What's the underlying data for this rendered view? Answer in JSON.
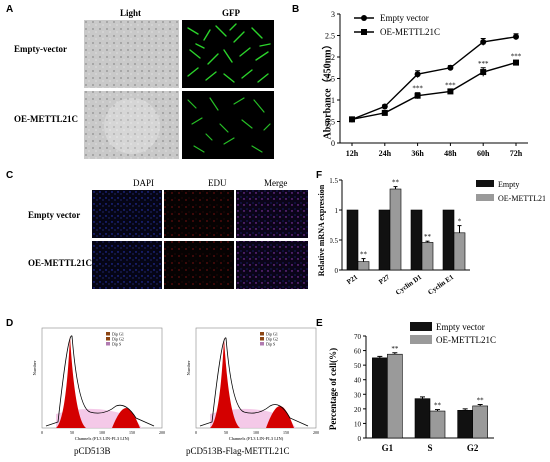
{
  "panels": {
    "A": {
      "letter": "A",
      "col_labels": [
        "Light",
        "GFP"
      ],
      "row_labels": [
        "Empty-vector",
        "OE-METTL21C"
      ]
    },
    "B": {
      "letter": "B",
      "ylabel": "Absorbance（450nm）",
      "legend": [
        "Empty vector",
        "OE-METTL21C"
      ],
      "sig": "***"
    },
    "C": {
      "letter": "C",
      "col_labels": [
        "DAPI",
        "EDU",
        "Merge"
      ],
      "row_labels": [
        "Empty vector",
        "OE-METTL21C"
      ]
    },
    "D": {
      "letter": "D",
      "captions": [
        "pCD513B",
        "pCD513B-Flag-METTL21C"
      ],
      "legend_items": [
        "Dip G1",
        "Dip G2",
        "Dip S"
      ],
      "xaxis_text": "Channels (FL3 LIN-FL3 LIN)",
      "yaxis_text": "Number",
      "tick_labels": [
        "0",
        "50",
        "100",
        "150",
        "200"
      ]
    },
    "E": {
      "letter": "E",
      "ylabel": "Percentage of cell(%)",
      "legend": [
        "Empty vector",
        "OE-METTL21C"
      ],
      "sig": "**"
    },
    "F": {
      "letter": "F",
      "ylabel": "Relative mRNA expression",
      "legend": [
        "Empty",
        "OE-METTL21C"
      ],
      "sig2": "**",
      "sig1": "*"
    }
  },
  "colors": {
    "gfp_green": "#2bd42b",
    "bar_black": "#111111",
    "bar_gray": "#9a9a9a",
    "hist_red": "#d40000",
    "hist_pink": "#f3c3e6",
    "edu_red": "#c01818",
    "dapi_blue": "#2a3ad0"
  },
  "chart_data": [
    {
      "id": "B",
      "type": "line",
      "categories": [
        "12h",
        "24h",
        "36h",
        "48h",
        "60h",
        "72h"
      ],
      "ylim": [
        0,
        3
      ],
      "yticks": [
        "0",
        "0.5",
        "1",
        "1.5",
        "2",
        "2.5",
        "3"
      ],
      "series": [
        {
          "name": "Empty vector",
          "values": [
            0.55,
            0.85,
            1.6,
            1.75,
            2.35,
            2.47
          ],
          "errors": [
            0.02,
            0.04,
            0.08,
            0.05,
            0.08,
            0.07
          ]
        },
        {
          "name": "OE-METTL21C",
          "values": [
            0.55,
            0.7,
            1.1,
            1.2,
            1.65,
            1.87
          ],
          "errors": [
            0.02,
            0.03,
            0.07,
            0.04,
            0.1,
            0.05
          ]
        }
      ],
      "significance": [
        "",
        "",
        "***",
        "***",
        "***",
        "***"
      ]
    },
    {
      "id": "F",
      "type": "bar",
      "categories": [
        "P21",
        "P27",
        "Cyclin D1",
        "Cyclin E1"
      ],
      "ylim": [
        0,
        1.5
      ],
      "yticks": [
        "0",
        "0.5",
        "1",
        "1.5"
      ],
      "series": [
        {
          "name": "Empty",
          "values": [
            1.0,
            1.0,
            1.0,
            1.0
          ],
          "errors": [
            0,
            0,
            0,
            0
          ]
        },
        {
          "name": "OE-METTL21C",
          "values": [
            0.14,
            1.35,
            0.46,
            0.62
          ],
          "errors": [
            0.05,
            0.04,
            0.02,
            0.12
          ]
        }
      ],
      "significance": [
        "**",
        "**",
        "**",
        "*"
      ]
    },
    {
      "id": "E",
      "type": "bar",
      "categories": [
        "G1",
        "S",
        "G2"
      ],
      "ylim": [
        0,
        70
      ],
      "yticks": [
        "0",
        "10",
        "20",
        "30",
        "40",
        "50",
        "60",
        "70"
      ],
      "series": [
        {
          "name": "Empty vector",
          "values": [
            55,
            27,
            19
          ],
          "errors": [
            1.0,
            1.2,
            1.0
          ]
        },
        {
          "name": "OE-METTL21C",
          "values": [
            57.5,
            18.5,
            22
          ],
          "errors": [
            1.0,
            1.0,
            1.0
          ]
        }
      ],
      "significance": [
        "**",
        "**",
        "**"
      ]
    }
  ]
}
